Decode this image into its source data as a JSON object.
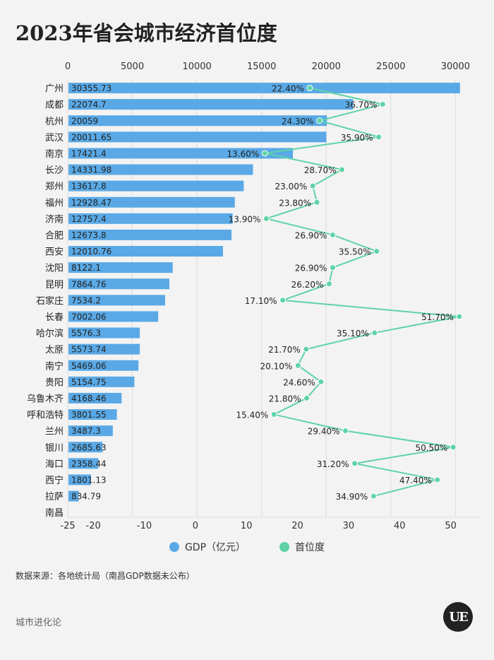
{
  "title": "2023年省会城市经济首位度",
  "source": "数据来源：各地统计局（南昌GDP数据未公布）",
  "footer_brand": "城市进化论",
  "logo_text": "UE",
  "colors": {
    "bar": "#5aa9e6",
    "line": "#5fd3a7",
    "grid": "#dcdcdc",
    "axis": "#999999"
  },
  "chart_data": {
    "type": "bar+line",
    "title": "2023年省会城市经济首位度",
    "categories": [
      "广州",
      "成都",
      "杭州",
      "武汉",
      "南京",
      "长沙",
      "郑州",
      "福州",
      "济南",
      "合肥",
      "西安",
      "沈阳",
      "昆明",
      "石家庄",
      "长春",
      "哈尔滨",
      "太原",
      "南宁",
      "贵阳",
      "乌鲁木齐",
      "呼和浩特",
      "兰州",
      "银川",
      "海口",
      "西宁",
      "拉萨",
      "南昌"
    ],
    "top_axis": {
      "range": [
        0,
        32000
      ],
      "ticks": [
        0,
        5000,
        10000,
        15000,
        20000,
        25000,
        30000
      ]
    },
    "bottom_axis": {
      "range": [
        -25,
        56
      ],
      "ticks": [
        -25,
        -20,
        -10,
        0,
        10,
        20,
        30,
        40,
        50
      ]
    },
    "series": [
      {
        "name": "GDP（亿元）",
        "type": "bar",
        "axis": "top",
        "values": [
          30355.73,
          22074.7,
          20059,
          20011.65,
          17421.4,
          14331.98,
          13617.8,
          12928.47,
          12757.4,
          12673.8,
          12010.76,
          8122.1,
          7864.76,
          7534.2,
          7002.06,
          5576.3,
          5573.74,
          5469.06,
          5154.75,
          4168.46,
          3801.55,
          3487.3,
          2685.63,
          2358.44,
          1801.13,
          834.79,
          null
        ],
        "labels": [
          "30355.73",
          "22074.7",
          "20059",
          "20011.65",
          "17421.4",
          "14331.98",
          "13617.8",
          "12928.47",
          "12757.4",
          "12673.8",
          "12010.76",
          "8122.1",
          "7864.76",
          "7534.2",
          "7002.06",
          "5576.3",
          "5573.74",
          "5469.06",
          "5154.75",
          "4168.46",
          "3801.55",
          "3487.3",
          "2685.63",
          "2358.44",
          "1801.13",
          "834.79",
          ""
        ]
      },
      {
        "name": "首位度",
        "type": "line",
        "axis": "bottom",
        "values": [
          22.4,
          36.7,
          24.3,
          35.9,
          13.6,
          28.7,
          23.0,
          23.8,
          13.9,
          26.9,
          35.5,
          26.9,
          26.2,
          17.1,
          51.7,
          35.1,
          21.7,
          20.1,
          24.6,
          21.8,
          15.4,
          29.4,
          50.5,
          31.2,
          47.4,
          34.9,
          null
        ],
        "labels": [
          "22.40%",
          "36.70%",
          "24.30%",
          "35.90%",
          "13.60%",
          "28.70%",
          "23.00%",
          "23.80%",
          "13.90%",
          "26.90%",
          "35.50%",
          "26.90%",
          "26.20%",
          "17.10%",
          "51.70%",
          "35.10%",
          "21.70%",
          "20.10%",
          "24.60%",
          "21.80%",
          "15.40%",
          "29.40%",
          "50.50%",
          "31.20%",
          "47.40%",
          "34.90%",
          ""
        ]
      }
    ],
    "legend": {
      "position": "bottom",
      "entries": [
        "GDP（亿元）",
        "首位度"
      ]
    }
  }
}
